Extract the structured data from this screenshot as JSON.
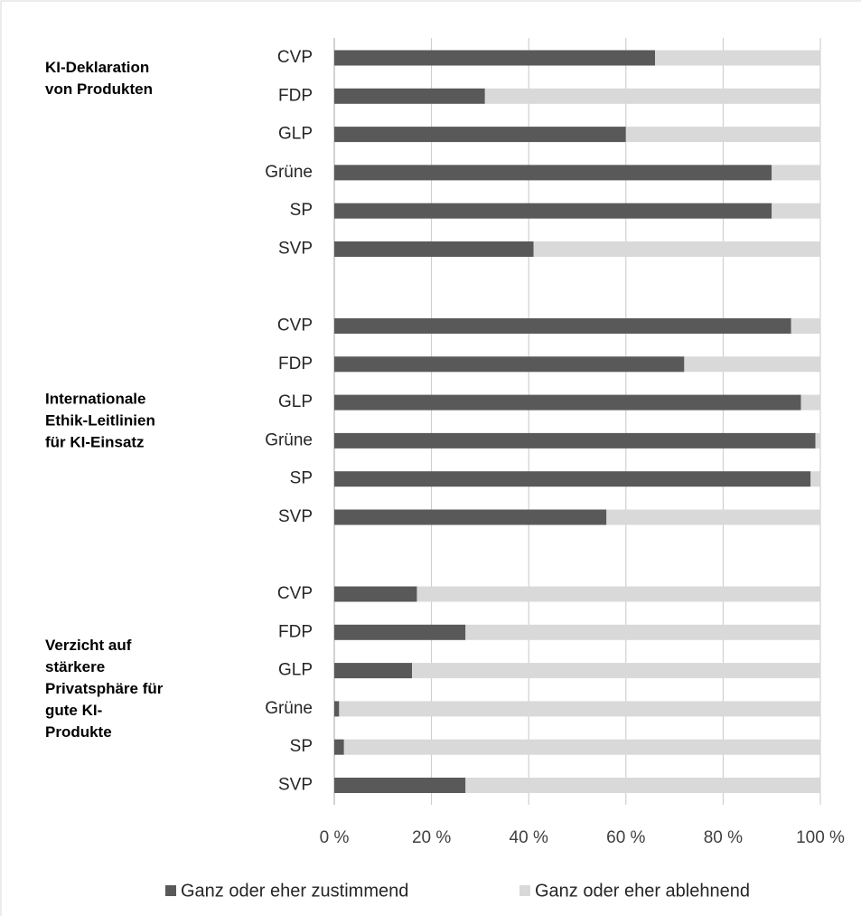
{
  "chart_data": {
    "type": "bar",
    "orientation": "horizontal",
    "stacked": true,
    "groups": [
      {
        "label": [
          "KI-Deklaration",
          "von Produkten"
        ],
        "categories": [
          "CVP",
          "FDP",
          "GLP",
          "Grüne",
          "SP",
          "SVP"
        ]
      },
      {
        "label": [
          "Internationale",
          "Ethik-Leitlinien",
          "für KI-Einsatz"
        ],
        "categories": [
          "CVP",
          "FDP",
          "GLP",
          "Grüne",
          "SP",
          "SVP"
        ]
      },
      {
        "label": [
          "Verzicht auf",
          "stärkere",
          "Privatsphäre für",
          "gute KI-",
          "Produkte"
        ],
        "categories": [
          "CVP",
          "FDP",
          "GLP",
          "Grüne",
          "SP",
          "SVP"
        ]
      }
    ],
    "series": [
      {
        "name": "Ganz oder eher zustimmend",
        "color": "#595959",
        "values": [
          66,
          31,
          60,
          90,
          90,
          41,
          94,
          72,
          96,
          99,
          98,
          56,
          17,
          27,
          16,
          1,
          2,
          27
        ]
      },
      {
        "name": "Ganz oder eher ablehnend",
        "color": "#d9d9d9",
        "values": [
          34,
          69,
          40,
          10,
          10,
          59,
          6,
          28,
          4,
          1,
          2,
          44,
          83,
          73,
          84,
          99,
          98,
          73
        ]
      }
    ],
    "xlim": [
      0,
      100
    ],
    "xticks": [
      {
        "value": 0,
        "label": "0 %"
      },
      {
        "value": 20,
        "label": "20 %"
      },
      {
        "value": 40,
        "label": "40 %"
      },
      {
        "value": 60,
        "label": "60 %"
      },
      {
        "value": 80,
        "label": "80 %"
      },
      {
        "value": 100,
        "label": "100 %"
      }
    ],
    "grid": true,
    "legend": "bottom"
  }
}
